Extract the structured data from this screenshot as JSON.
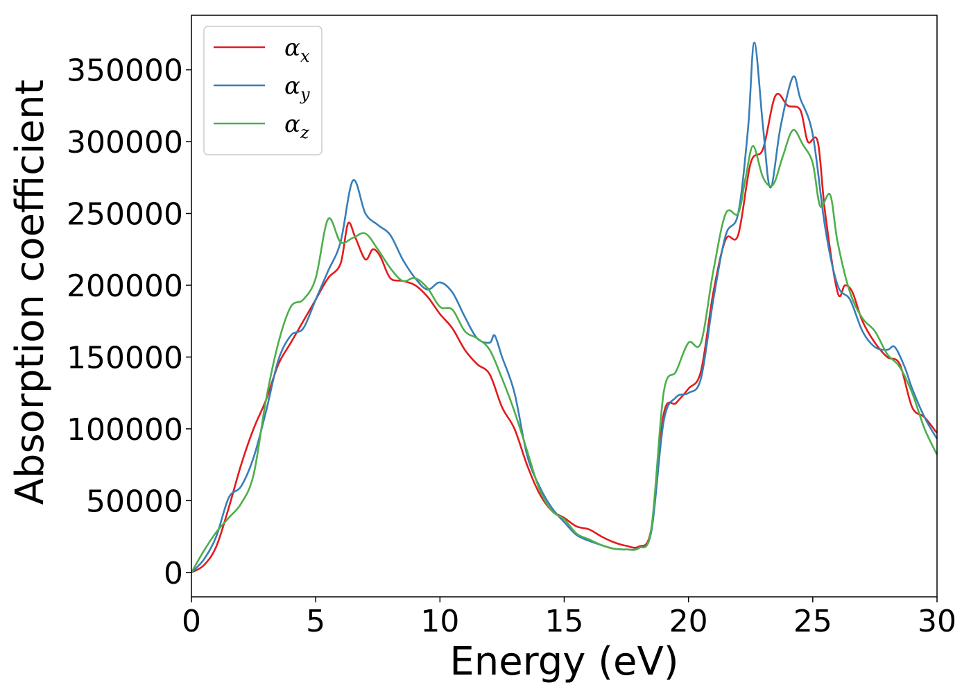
{
  "chart_data": {
    "type": "line",
    "title": "",
    "xlabel": "Energy (eV)",
    "ylabel": "Absorption coefficient",
    "xlim": [
      0,
      30
    ],
    "ylim": [
      -17000,
      388000
    ],
    "xticks": [
      0,
      5,
      10,
      15,
      20,
      25,
      30
    ],
    "yticks": [
      0,
      50000,
      100000,
      150000,
      200000,
      250000,
      300000,
      350000
    ],
    "grid": false,
    "legend_position": "top-left",
    "series": [
      {
        "name": "α_x",
        "legend_base": "α",
        "legend_sub": "x",
        "color": "#e41a1c",
        "points": [
          [
            0,
            0
          ],
          [
            0.5,
            5000
          ],
          [
            1,
            18000
          ],
          [
            1.5,
            45000
          ],
          [
            2,
            75000
          ],
          [
            2.5,
            100000
          ],
          [
            3,
            120000
          ],
          [
            3.5,
            145000
          ],
          [
            4,
            160000
          ],
          [
            4.5,
            175000
          ],
          [
            5,
            190000
          ],
          [
            5.5,
            205000
          ],
          [
            6,
            215000
          ],
          [
            6.3,
            243000
          ],
          [
            6.6,
            233000
          ],
          [
            7,
            218000
          ],
          [
            7.3,
            225000
          ],
          [
            7.6,
            220000
          ],
          [
            8,
            205000
          ],
          [
            8.5,
            203000
          ],
          [
            9,
            200000
          ],
          [
            9.5,
            192000
          ],
          [
            10,
            180000
          ],
          [
            10.5,
            170000
          ],
          [
            11,
            155000
          ],
          [
            11.5,
            145000
          ],
          [
            12,
            138000
          ],
          [
            12.5,
            115000
          ],
          [
            13,
            100000
          ],
          [
            13.5,
            75000
          ],
          [
            14,
            55000
          ],
          [
            14.5,
            43000
          ],
          [
            15,
            38000
          ],
          [
            15.5,
            32000
          ],
          [
            16,
            30000
          ],
          [
            16.5,
            25000
          ],
          [
            17,
            21000
          ],
          [
            17.5,
            18500
          ],
          [
            18,
            18000
          ],
          [
            18.5,
            30000
          ],
          [
            19,
            110000
          ],
          [
            19.5,
            118000
          ],
          [
            20,
            128000
          ],
          [
            20.5,
            140000
          ],
          [
            21,
            195000
          ],
          [
            21.5,
            232000
          ],
          [
            22,
            235000
          ],
          [
            22.5,
            285000
          ],
          [
            23,
            295000
          ],
          [
            23.5,
            332000
          ],
          [
            24,
            325000
          ],
          [
            24.5,
            322000
          ],
          [
            24.8,
            300000
          ],
          [
            25.2,
            300000
          ],
          [
            25.5,
            250000
          ],
          [
            26,
            195000
          ],
          [
            26.3,
            200000
          ],
          [
            26.6,
            195000
          ],
          [
            27,
            175000
          ],
          [
            27.5,
            160000
          ],
          [
            28,
            150000
          ],
          [
            28.5,
            145000
          ],
          [
            29,
            115000
          ],
          [
            29.5,
            108000
          ],
          [
            30,
            97000
          ]
        ]
      },
      {
        "name": "α_y",
        "legend_base": "α",
        "legend_sub": "y",
        "color": "#377eb8",
        "points": [
          [
            0,
            0
          ],
          [
            0.5,
            9000
          ],
          [
            1,
            25000
          ],
          [
            1.5,
            52000
          ],
          [
            2,
            60000
          ],
          [
            2.5,
            80000
          ],
          [
            3,
            112000
          ],
          [
            3.5,
            148000
          ],
          [
            4,
            165000
          ],
          [
            4.5,
            170000
          ],
          [
            5,
            190000
          ],
          [
            5.5,
            210000
          ],
          [
            6,
            230000
          ],
          [
            6.5,
            273000
          ],
          [
            7,
            250000
          ],
          [
            7.5,
            242000
          ],
          [
            8,
            235000
          ],
          [
            8.5,
            218000
          ],
          [
            9,
            205000
          ],
          [
            9.5,
            197000
          ],
          [
            10,
            202000
          ],
          [
            10.5,
            195000
          ],
          [
            11,
            178000
          ],
          [
            11.5,
            163000
          ],
          [
            12,
            160000
          ],
          [
            12.2,
            165000
          ],
          [
            12.5,
            150000
          ],
          [
            13,
            125000
          ],
          [
            13.5,
            82000
          ],
          [
            14,
            60000
          ],
          [
            14.5,
            45000
          ],
          [
            15,
            35000
          ],
          [
            15.5,
            26000
          ],
          [
            16,
            22000
          ],
          [
            16.5,
            19000
          ],
          [
            17,
            16500
          ],
          [
            17.5,
            16000
          ],
          [
            18,
            17000
          ],
          [
            18.5,
            28000
          ],
          [
            19,
            105000
          ],
          [
            19.5,
            122000
          ],
          [
            20,
            125000
          ],
          [
            20.5,
            135000
          ],
          [
            21,
            190000
          ],
          [
            21.5,
            235000
          ],
          [
            22,
            250000
          ],
          [
            22.4,
            310000
          ],
          [
            22.65,
            369000
          ],
          [
            23,
            310000
          ],
          [
            23.3,
            268000
          ],
          [
            23.7,
            310000
          ],
          [
            24.2,
            345000
          ],
          [
            24.5,
            330000
          ],
          [
            25,
            305000
          ],
          [
            25.5,
            240000
          ],
          [
            26,
            200000
          ],
          [
            26.5,
            190000
          ],
          [
            27,
            168000
          ],
          [
            27.5,
            157000
          ],
          [
            28,
            155000
          ],
          [
            28.3,
            157000
          ],
          [
            28.7,
            143000
          ],
          [
            29,
            128000
          ],
          [
            29.5,
            108000
          ],
          [
            30,
            93000
          ]
        ]
      },
      {
        "name": "α_z",
        "legend_base": "α",
        "legend_sub": "z",
        "color": "#4daf4a",
        "points": [
          [
            0,
            0
          ],
          [
            0.5,
            15000
          ],
          [
            1,
            28000
          ],
          [
            1.5,
            38000
          ],
          [
            2,
            48000
          ],
          [
            2.5,
            68000
          ],
          [
            3,
            120000
          ],
          [
            3.5,
            160000
          ],
          [
            4,
            185000
          ],
          [
            4.5,
            190000
          ],
          [
            5,
            205000
          ],
          [
            5.5,
            246000
          ],
          [
            6,
            230000
          ],
          [
            6.5,
            233000
          ],
          [
            7,
            236000
          ],
          [
            7.5,
            225000
          ],
          [
            8,
            212000
          ],
          [
            8.5,
            203000
          ],
          [
            9,
            205000
          ],
          [
            9.5,
            198000
          ],
          [
            10,
            185000
          ],
          [
            10.5,
            183000
          ],
          [
            11,
            168000
          ],
          [
            11.5,
            163000
          ],
          [
            12,
            155000
          ],
          [
            12.5,
            135000
          ],
          [
            13,
            112000
          ],
          [
            13.5,
            85000
          ],
          [
            14,
            58000
          ],
          [
            14.5,
            43000
          ],
          [
            15,
            37000
          ],
          [
            15.5,
            27000
          ],
          [
            16,
            23000
          ],
          [
            16.5,
            19000
          ],
          [
            17,
            16500
          ],
          [
            17.5,
            16000
          ],
          [
            18,
            17000
          ],
          [
            18.5,
            30000
          ],
          [
            19,
            125000
          ],
          [
            19.5,
            140000
          ],
          [
            20,
            160000
          ],
          [
            20.5,
            160000
          ],
          [
            21,
            210000
          ],
          [
            21.5,
            250000
          ],
          [
            22,
            250000
          ],
          [
            22.3,
            275000
          ],
          [
            22.6,
            297000
          ],
          [
            23,
            275000
          ],
          [
            23.4,
            270000
          ],
          [
            23.8,
            290000
          ],
          [
            24.2,
            308000
          ],
          [
            24.6,
            298000
          ],
          [
            25,
            285000
          ],
          [
            25.3,
            255000
          ],
          [
            25.7,
            263000
          ],
          [
            26,
            230000
          ],
          [
            26.5,
            195000
          ],
          [
            27,
            177000
          ],
          [
            27.5,
            168000
          ],
          [
            28,
            152000
          ],
          [
            28.5,
            143000
          ],
          [
            29,
            125000
          ],
          [
            29.5,
            100000
          ],
          [
            30,
            82000
          ]
        ]
      }
    ]
  }
}
